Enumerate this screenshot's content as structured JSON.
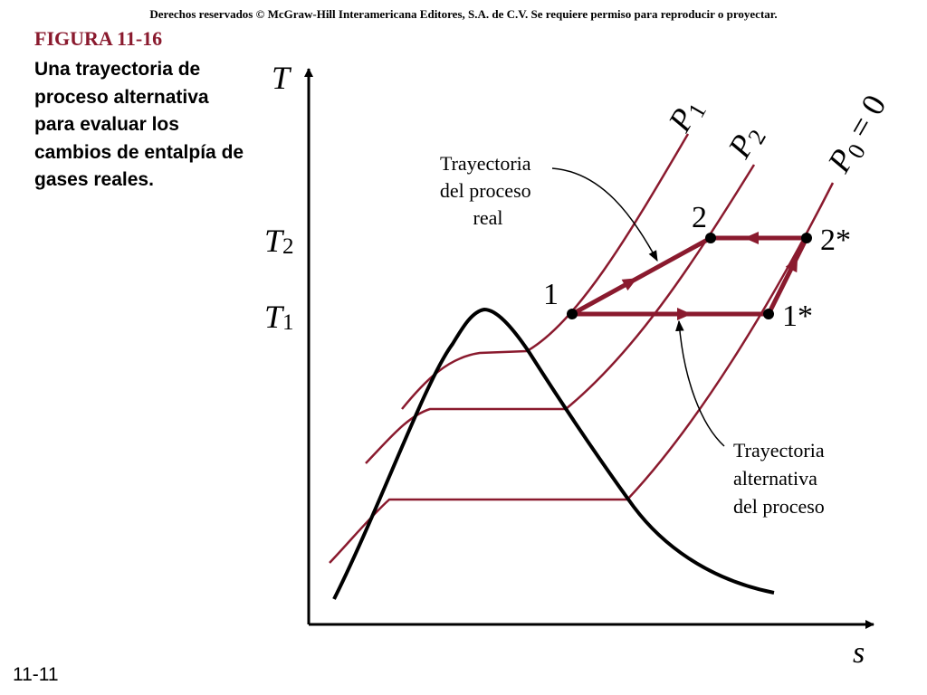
{
  "copyright": "Derechos reservados © McGraw-Hill Interamericana Editores, S.A. de C.V. Se requiere permiso para reproducir o proyectar.",
  "figure": {
    "title": "FIGURA 11-16",
    "caption": "Una trayectoria de proceso alternativa para evaluar los cambios de entalpía de gases reales."
  },
  "slide_number": "11-11",
  "axes": {
    "y_label": "T",
    "x_label": "s",
    "t2_base": "T",
    "t2_sub": "2",
    "t1_base": "T",
    "t1_sub": "1"
  },
  "isobars": {
    "p1_base": "P",
    "p1_sub": "1",
    "p2_base": "P",
    "p2_sub": "2",
    "p0_base": "P",
    "p0_sub": "0",
    "p0_eq": " = 0"
  },
  "states": {
    "s1": "1",
    "s2": "2",
    "s1star": "1*",
    "s2star": "2*"
  },
  "annotations": {
    "real_path": [
      "Trayectoria",
      "del proceso",
      "real"
    ],
    "alt_path": [
      "Trayectoria",
      "alternativa",
      "del proceso"
    ]
  },
  "colors": {
    "isobar": "#8a1a2e",
    "path": "#8a1a2e",
    "dome": "#000000",
    "title": "#8a1a2e"
  }
}
